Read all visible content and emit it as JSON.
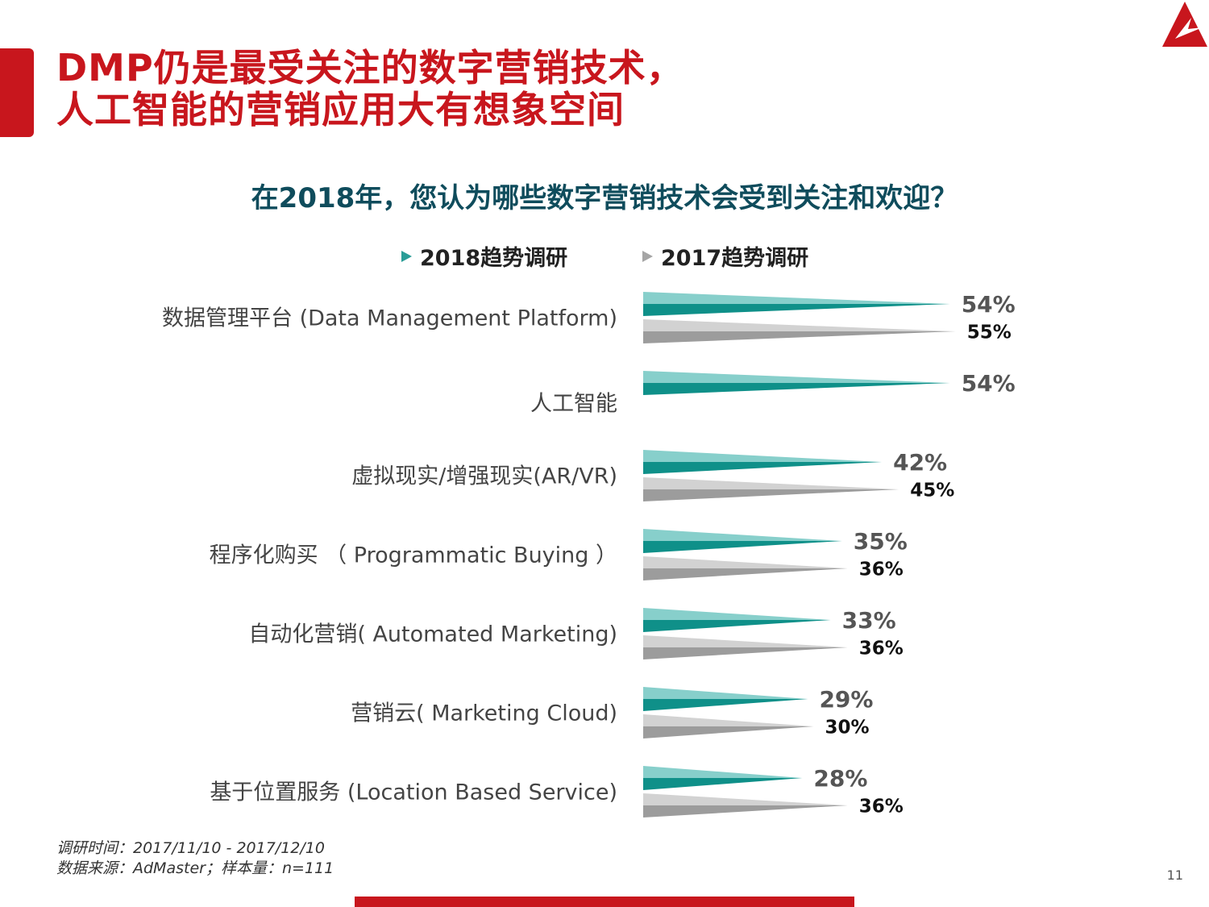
{
  "header": {
    "title_line1": "DMP仍是最受关注的数字营销技术，",
    "title_line2": "人工智能的营销应用大有想象空间"
  },
  "question": "在2018年，您认为哪些数字营销技术会受到关注和欢迎？",
  "legend": {
    "series_2018": "2018趋势调研",
    "series_2017": "2017趋势调研"
  },
  "colors": {
    "brand_red": "#c8161d",
    "teal": "#2a9d97",
    "gray": "#a5a5a5"
  },
  "chart_data": {
    "type": "bar",
    "orientation": "horizontal",
    "categories": [
      "数据管理平台 (Data Management Platform)",
      "人工智能",
      "虚拟现实/增强现实(AR/VR)",
      "程序化购买 （ Programmatic Buying ）",
      "自动化营销( Automated Marketing)",
      "营销云( Marketing Cloud)",
      "基于位置服务 (Location Based Service)"
    ],
    "series": [
      {
        "name": "2018趋势调研",
        "values": [
          54,
          54,
          42,
          35,
          33,
          29,
          28
        ],
        "labels": [
          "54%",
          "54%",
          "42%",
          "35%",
          "33%",
          "29%",
          "28%"
        ]
      },
      {
        "name": "2017趋势调研",
        "values": [
          55,
          null,
          45,
          36,
          36,
          30,
          36
        ],
        "labels": [
          "55%",
          "",
          "45%",
          "36%",
          "36%",
          "30%",
          "36%"
        ]
      }
    ],
    "unit": "%",
    "xlim": [
      0,
      100
    ]
  },
  "footnote": {
    "line1": "调研时间：2017/11/10 - 2017/12/10",
    "line2": "数据来源：AdMaster；样本量：n=111"
  },
  "page_number": "11"
}
